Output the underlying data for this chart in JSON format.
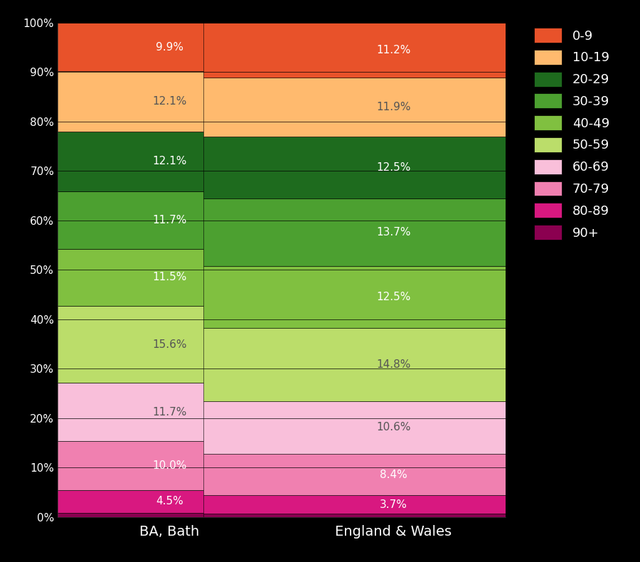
{
  "categories": [
    "BA, Bath",
    "England & Wales"
  ],
  "age_labels_bottom_to_top": [
    "90+",
    "80-89",
    "70-79",
    "60-69",
    "50-59",
    "40-49",
    "30-39",
    "20-29",
    "10-19",
    "0-9"
  ],
  "bath_vals": [
    0.9,
    4.5,
    10.0,
    11.7,
    15.6,
    11.5,
    11.7,
    12.1,
    12.1,
    9.9
  ],
  "ew_vals": [
    0.7,
    3.7,
    8.4,
    10.6,
    14.8,
    12.5,
    13.7,
    12.5,
    11.9,
    11.2
  ],
  "bath_labels": [
    null,
    "4.5%",
    "10.0%",
    "11.7%",
    "15.6%",
    "11.5%",
    "11.7%",
    "12.1%",
    "12.1%",
    "9.9%"
  ],
  "ew_labels": [
    null,
    "3.7%",
    "8.4%",
    "10.6%",
    "14.8%",
    "12.5%",
    "13.7%",
    "12.5%",
    "11.9%",
    "11.2%"
  ],
  "colors": {
    "0-9": "#E8522A",
    "10-19": "#FFBA6E",
    "20-29": "#1E6B1E",
    "30-39": "#4CA030",
    "40-49": "#80C040",
    "50-59": "#BBDD6A",
    "60-69": "#F9BFDA",
    "70-79": "#F080B0",
    "80-89": "#D81880",
    "90+": "#8B0050"
  },
  "legend_order": [
    "0-9",
    "10-19",
    "20-29",
    "30-39",
    "40-49",
    "50-59",
    "60-69",
    "70-79",
    "80-89",
    "90+"
  ],
  "background_color": "#000000",
  "text_color": "#FFFFFF",
  "figsize": [
    9.0,
    7.9
  ],
  "dpi": 100
}
